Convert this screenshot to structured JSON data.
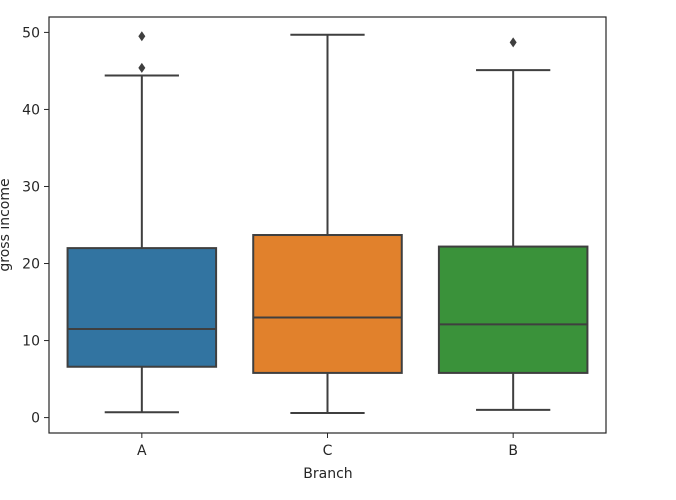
{
  "chart_data": {
    "type": "box",
    "title": "",
    "xlabel": "Branch",
    "ylabel": "gross income",
    "categories": [
      "A",
      "C",
      "B"
    ],
    "colors": [
      "#3274a1",
      "#e1812c",
      "#3a923a"
    ],
    "ylim": [
      -2,
      52
    ],
    "yticks": [
      0,
      10,
      20,
      30,
      40,
      50
    ],
    "grid": false,
    "boxes": [
      {
        "category": "A",
        "whisker_low": 0.7,
        "q1": 6.6,
        "median": 11.5,
        "q3": 22.0,
        "whisker_high": 44.4,
        "outliers": [
          45.4,
          49.5
        ]
      },
      {
        "category": "C",
        "whisker_low": 0.6,
        "q1": 5.8,
        "median": 13.0,
        "q3": 23.7,
        "whisker_high": 49.7,
        "outliers": []
      },
      {
        "category": "B",
        "whisker_low": 1.0,
        "q1": 5.8,
        "median": 12.1,
        "q3": 22.2,
        "whisker_high": 45.1,
        "outliers": [
          48.7
        ]
      }
    ]
  }
}
